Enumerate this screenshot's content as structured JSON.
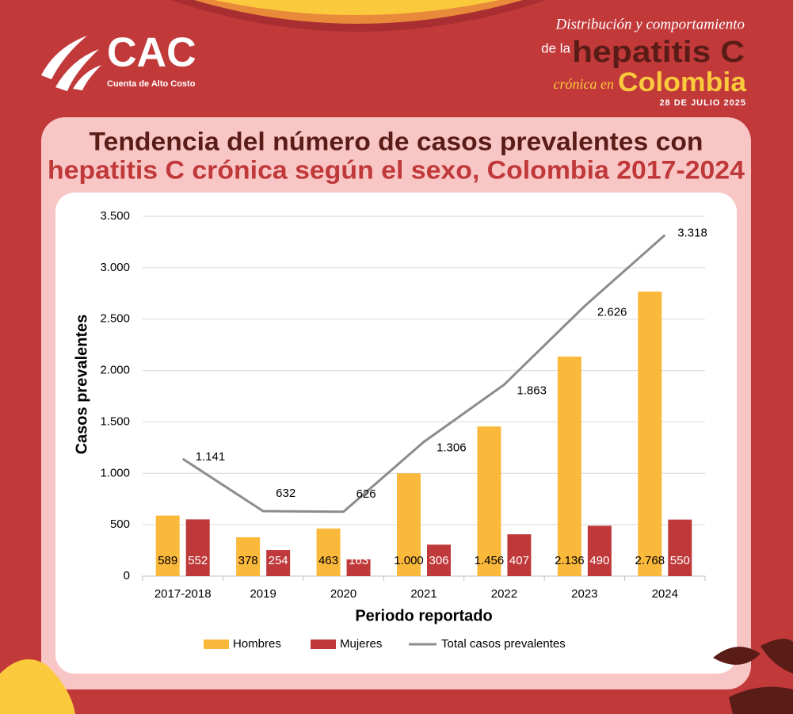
{
  "header": {
    "logo": "CAC",
    "logo_subtitle": "Cuenta de Alto Costo",
    "line1": "Distribución y comportamiento",
    "line2a": "de la",
    "line2b": "hepatitis C",
    "line3a": "crónica en",
    "line3b": "Colombia",
    "date": "28 DE JULIO 2025"
  },
  "chart_data": {
    "type": "bar",
    "title": [
      "Tendencia del número de casos prevalentes con",
      "hepatitis C crónica según el sexo, Colombia 2017-2024"
    ],
    "x_label": "Periodo reportado",
    "y_label": "Casos prevalentes",
    "categories": [
      "2017-2018",
      "2019",
      "2020",
      "2021",
      "2022",
      "2023",
      "2024"
    ],
    "series": [
      {
        "name": "Hombres",
        "color": "#fbb93c",
        "values": [
          589,
          378,
          463,
          1000,
          1456,
          2136,
          2768
        ],
        "value_labels": [
          "589",
          "378",
          "463",
          "1.000",
          "1.456",
          "2.136",
          "2.768"
        ]
      },
      {
        "name": "Mujeres",
        "color": "#c0393a",
        "values": [
          552,
          254,
          163,
          306,
          407,
          490,
          550
        ]
      },
      {
        "name": "Total casos prevalentes",
        "type": "line",
        "color": "#8c8c8c",
        "values": [
          1141,
          632,
          626,
          1306,
          1863,
          2626,
          3318
        ],
        "value_labels": [
          "1.141",
          "632",
          "626",
          "1.306",
          "1.863",
          "2.626",
          "3.318"
        ]
      }
    ],
    "ylim": [
      0,
      3500
    ],
    "yticks": [
      0,
      500,
      {
        "value": 1000,
        "label": "1.000"
      },
      {
        "value": 1500,
        "label": "1.500"
      },
      {
        "value": 2000,
        "label": "2.000"
      },
      {
        "value": 2500,
        "label": "2.500"
      },
      {
        "value": 3000,
        "label": "3.000"
      },
      {
        "value": 3500,
        "label": "3.500"
      }
    ],
    "grid": true,
    "legend": "bottom"
  }
}
